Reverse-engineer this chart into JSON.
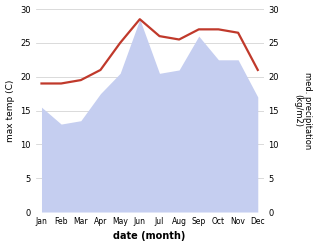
{
  "months": [
    "Jan",
    "Feb",
    "Mar",
    "Apr",
    "May",
    "Jun",
    "Jul",
    "Aug",
    "Sep",
    "Oct",
    "Nov",
    "Dec"
  ],
  "temp": [
    19.0,
    19.0,
    19.5,
    21.0,
    25.0,
    28.5,
    26.0,
    25.5,
    27.0,
    27.0,
    26.5,
    21.0
  ],
  "precip": [
    15.5,
    13.0,
    13.5,
    17.5,
    20.5,
    28.5,
    20.5,
    21.0,
    26.0,
    22.5,
    22.5,
    17.0
  ],
  "temp_color": "#c0392b",
  "precip_fill_color": "#c5cef0",
  "bg_color": "#ffffff",
  "xlabel": "date (month)",
  "ylabel_left": "max temp (C)",
  "ylabel_right": "med. precipitation\n(kg/m2)",
  "ylim": [
    0,
    30
  ],
  "yticks": [
    0,
    5,
    10,
    15,
    20,
    25,
    30
  ],
  "temp_linewidth": 1.6
}
